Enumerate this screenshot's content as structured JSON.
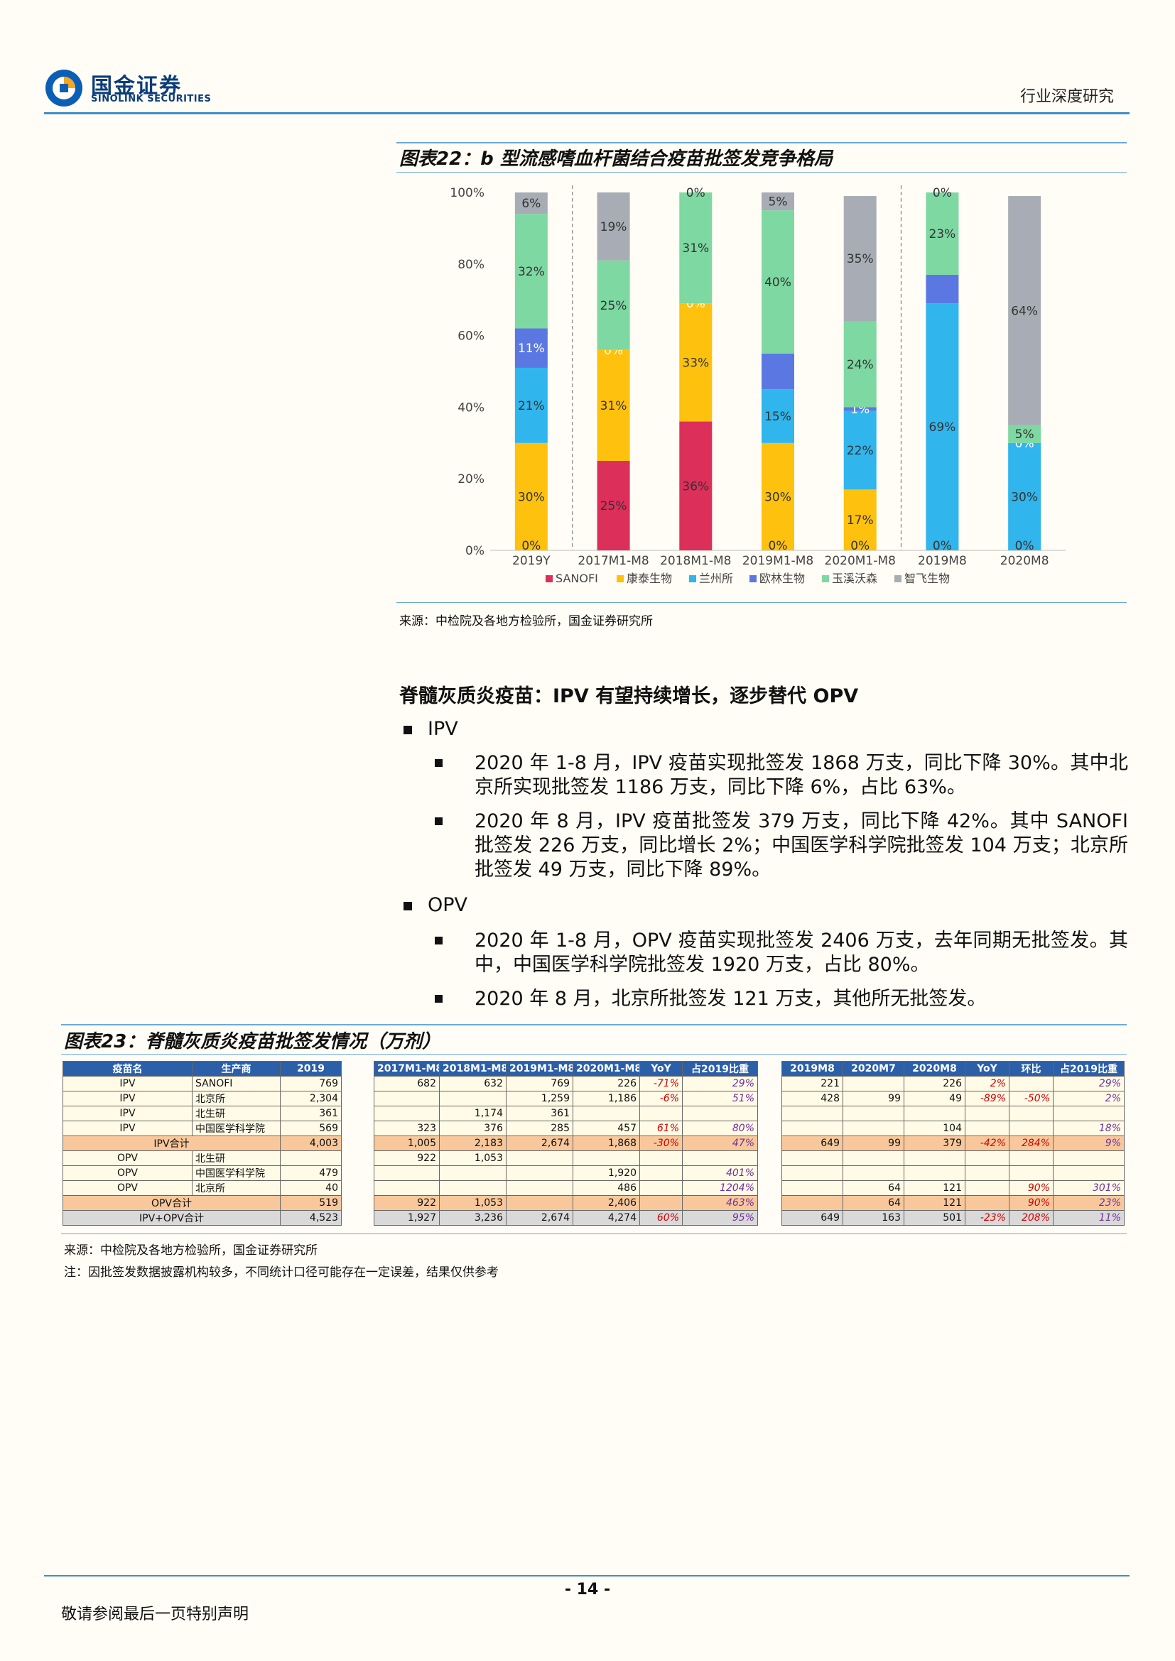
{
  "header": {
    "logo_cn": "国金证券",
    "logo_en": "SINOLINK SECURITIES",
    "section": "行业深度研究"
  },
  "fig22": {
    "title": "图表22：b 型流感嗜血杆菌结合疫苗批签发竞争格局",
    "source": "来源：中检院及各地方检验所，国金证券研究所"
  },
  "chart_data": {
    "type": "bar",
    "stacked": true,
    "categories": [
      "2019Y",
      "2017M1-M8",
      "2018M1-M8",
      "2019M1-M8",
      "2020M1-M8",
      "2019M8",
      "2020M8"
    ],
    "ylim": [
      0,
      100
    ],
    "yticks": [
      "0%",
      "20%",
      "40%",
      "60%",
      "80%",
      "100%"
    ],
    "legend_position": "bottom",
    "series": [
      {
        "name": "SANOFI",
        "color": "#dc2f5a",
        "values": [
          0,
          25,
          36,
          0,
          0,
          0,
          0
        ],
        "labels": [
          "",
          "25%",
          "36%",
          "",
          "",
          "",
          ""
        ]
      },
      {
        "name": "康泰生物",
        "color": "#fdc10e",
        "values": [
          30,
          31,
          33,
          30,
          17,
          0,
          0
        ],
        "labels": [
          "30%",
          "31%",
          "33%",
          "30%",
          "17%",
          "",
          ""
        ]
      },
      {
        "name": "兰州所",
        "color": "#30b5ec",
        "values": [
          21,
          0,
          0,
          15,
          22,
          69,
          30
        ],
        "labels": [
          "21%",
          "",
          "",
          "15%",
          "22%",
          "69%",
          "30%"
        ]
      },
      {
        "name": "欧林生物",
        "color": "#5b78e2",
        "values": [
          11,
          0,
          0,
          10,
          1,
          8,
          0
        ],
        "labels": [
          "11%",
          "0%",
          "0%",
          "",
          "1%",
          "",
          "0%"
        ]
      },
      {
        "name": "玉溪沃森",
        "color": "#7dd8a2",
        "values": [
          32,
          25,
          31,
          40,
          24,
          23,
          5
        ],
        "labels": [
          "32%",
          "25%",
          "31%",
          "40%",
          "24%",
          "23%",
          "5%"
        ]
      },
      {
        "name": "智飞生物",
        "color": "#a8acb4",
        "values": [
          6,
          19,
          0,
          5,
          35,
          0,
          64
        ],
        "labels": [
          "6%",
          "19%",
          "0%",
          "5%",
          "35%",
          "0%",
          "64%"
        ]
      }
    ],
    "bottom_labels": [
      "0%",
      "",
      "",
      "0%",
      "0%",
      "0%",
      "0%"
    ]
  },
  "section": {
    "heading": "脊髓灰质炎疫苗：IPV 有望持续增长，逐步替代 OPV",
    "ipv_title": "IPV",
    "ipv_points": [
      "2020 年 1-8 月，IPV 疫苗实现批签发 1868 万支，同比下降 30%。其中北京所实现批签发 1186 万支，同比下降 6%，占比 63%。",
      "2020 年 8 月，IPV 疫苗批签发 379 万支，同比下降 42%。其中 SANOFI 批签发 226 万支，同比增长 2%；中国医学科学院批签发 104 万支；北京所批签发 49 万支，同比下降 89%。"
    ],
    "opv_title": "OPV",
    "opv_points": [
      "2020 年 1-8 月，OPV 疫苗实现批签发 2406 万支，去年同期无批签发。其中，中国医学科学院批签发 1920 万支，占比 80%。",
      "2020 年 8 月，北京所批签发 121 万支，其他所无批签发。"
    ]
  },
  "fig23": {
    "title": "图表23：脊髓灰质炎疫苗批签发情况（万剂）",
    "source": "来源：中检院及各地方检验所，国金证券研究所",
    "note": "注：因批签发数据披露机构较多，不同统计口径可能存在一定误差，结果仅供参考",
    "t1_headers": [
      "疫苗名",
      "生产商",
      "2019"
    ],
    "t1_rows": [
      [
        "IPV",
        "SANOFI",
        "769"
      ],
      [
        "IPV",
        "北京所",
        "2,304"
      ],
      [
        "IPV",
        "北生研",
        "361"
      ],
      [
        "IPV",
        "中国医学科学院",
        "569"
      ],
      [
        "IPV合计",
        "",
        "4,003"
      ],
      [
        "OPV",
        "北生研",
        ""
      ],
      [
        "OPV",
        "中国医学科学院",
        "479"
      ],
      [
        "OPV",
        "北京所",
        "40"
      ],
      [
        "OPV合计",
        "",
        "519"
      ],
      [
        "IPV+OPV合计",
        "",
        "4,523"
      ]
    ],
    "t2_headers": [
      "2017M1-M8",
      "2018M1-M8",
      "2019M1-M8",
      "2020M1-M8",
      "YoY",
      "占2019比重"
    ],
    "t2_rows": [
      [
        "682",
        "632",
        "769",
        "226",
        "-71%",
        "29%"
      ],
      [
        "",
        "",
        "1,259",
        "1,186",
        "-6%",
        "51%"
      ],
      [
        "",
        "1,174",
        "361",
        "",
        "",
        ""
      ],
      [
        "323",
        "376",
        "285",
        "457",
        "61%",
        "80%"
      ],
      [
        "1,005",
        "2,183",
        "2,674",
        "1,868",
        "-30%",
        "47%"
      ],
      [
        "922",
        "1,053",
        "",
        "",
        "",
        ""
      ],
      [
        "",
        "",
        "",
        "1,920",
        "",
        "401%"
      ],
      [
        "",
        "",
        "",
        "486",
        "",
        "1204%"
      ],
      [
        "922",
        "1,053",
        "",
        "2,406",
        "",
        "463%"
      ],
      [
        "1,927",
        "3,236",
        "2,674",
        "4,274",
        "60%",
        "95%"
      ]
    ],
    "t3_headers": [
      "2019M8",
      "2020M7",
      "2020M8",
      "YoY",
      "环比",
      "占2019比重"
    ],
    "t3_rows": [
      [
        "221",
        "",
        "226",
        "2%",
        "",
        "29%"
      ],
      [
        "428",
        "99",
        "49",
        "-89%",
        "-50%",
        "2%"
      ],
      [
        "",
        "",
        "",
        "",
        "",
        ""
      ],
      [
        "",
        "",
        "104",
        "",
        "",
        "18%"
      ],
      [
        "649",
        "99",
        "379",
        "-42%",
        "284%",
        "9%"
      ],
      [
        "",
        "",
        "",
        "",
        "",
        ""
      ],
      [
        "",
        "",
        "",
        "",
        "",
        ""
      ],
      [
        "",
        "64",
        "121",
        "",
        "90%",
        "301%"
      ],
      [
        "",
        "64",
        "121",
        "",
        "90%",
        "23%"
      ],
      [
        "649",
        "163",
        "501",
        "-23%",
        "208%",
        "11%"
      ]
    ]
  },
  "footer": {
    "page": "- 14 -",
    "disclaimer": "敬请参阅最后一页特别声明"
  }
}
